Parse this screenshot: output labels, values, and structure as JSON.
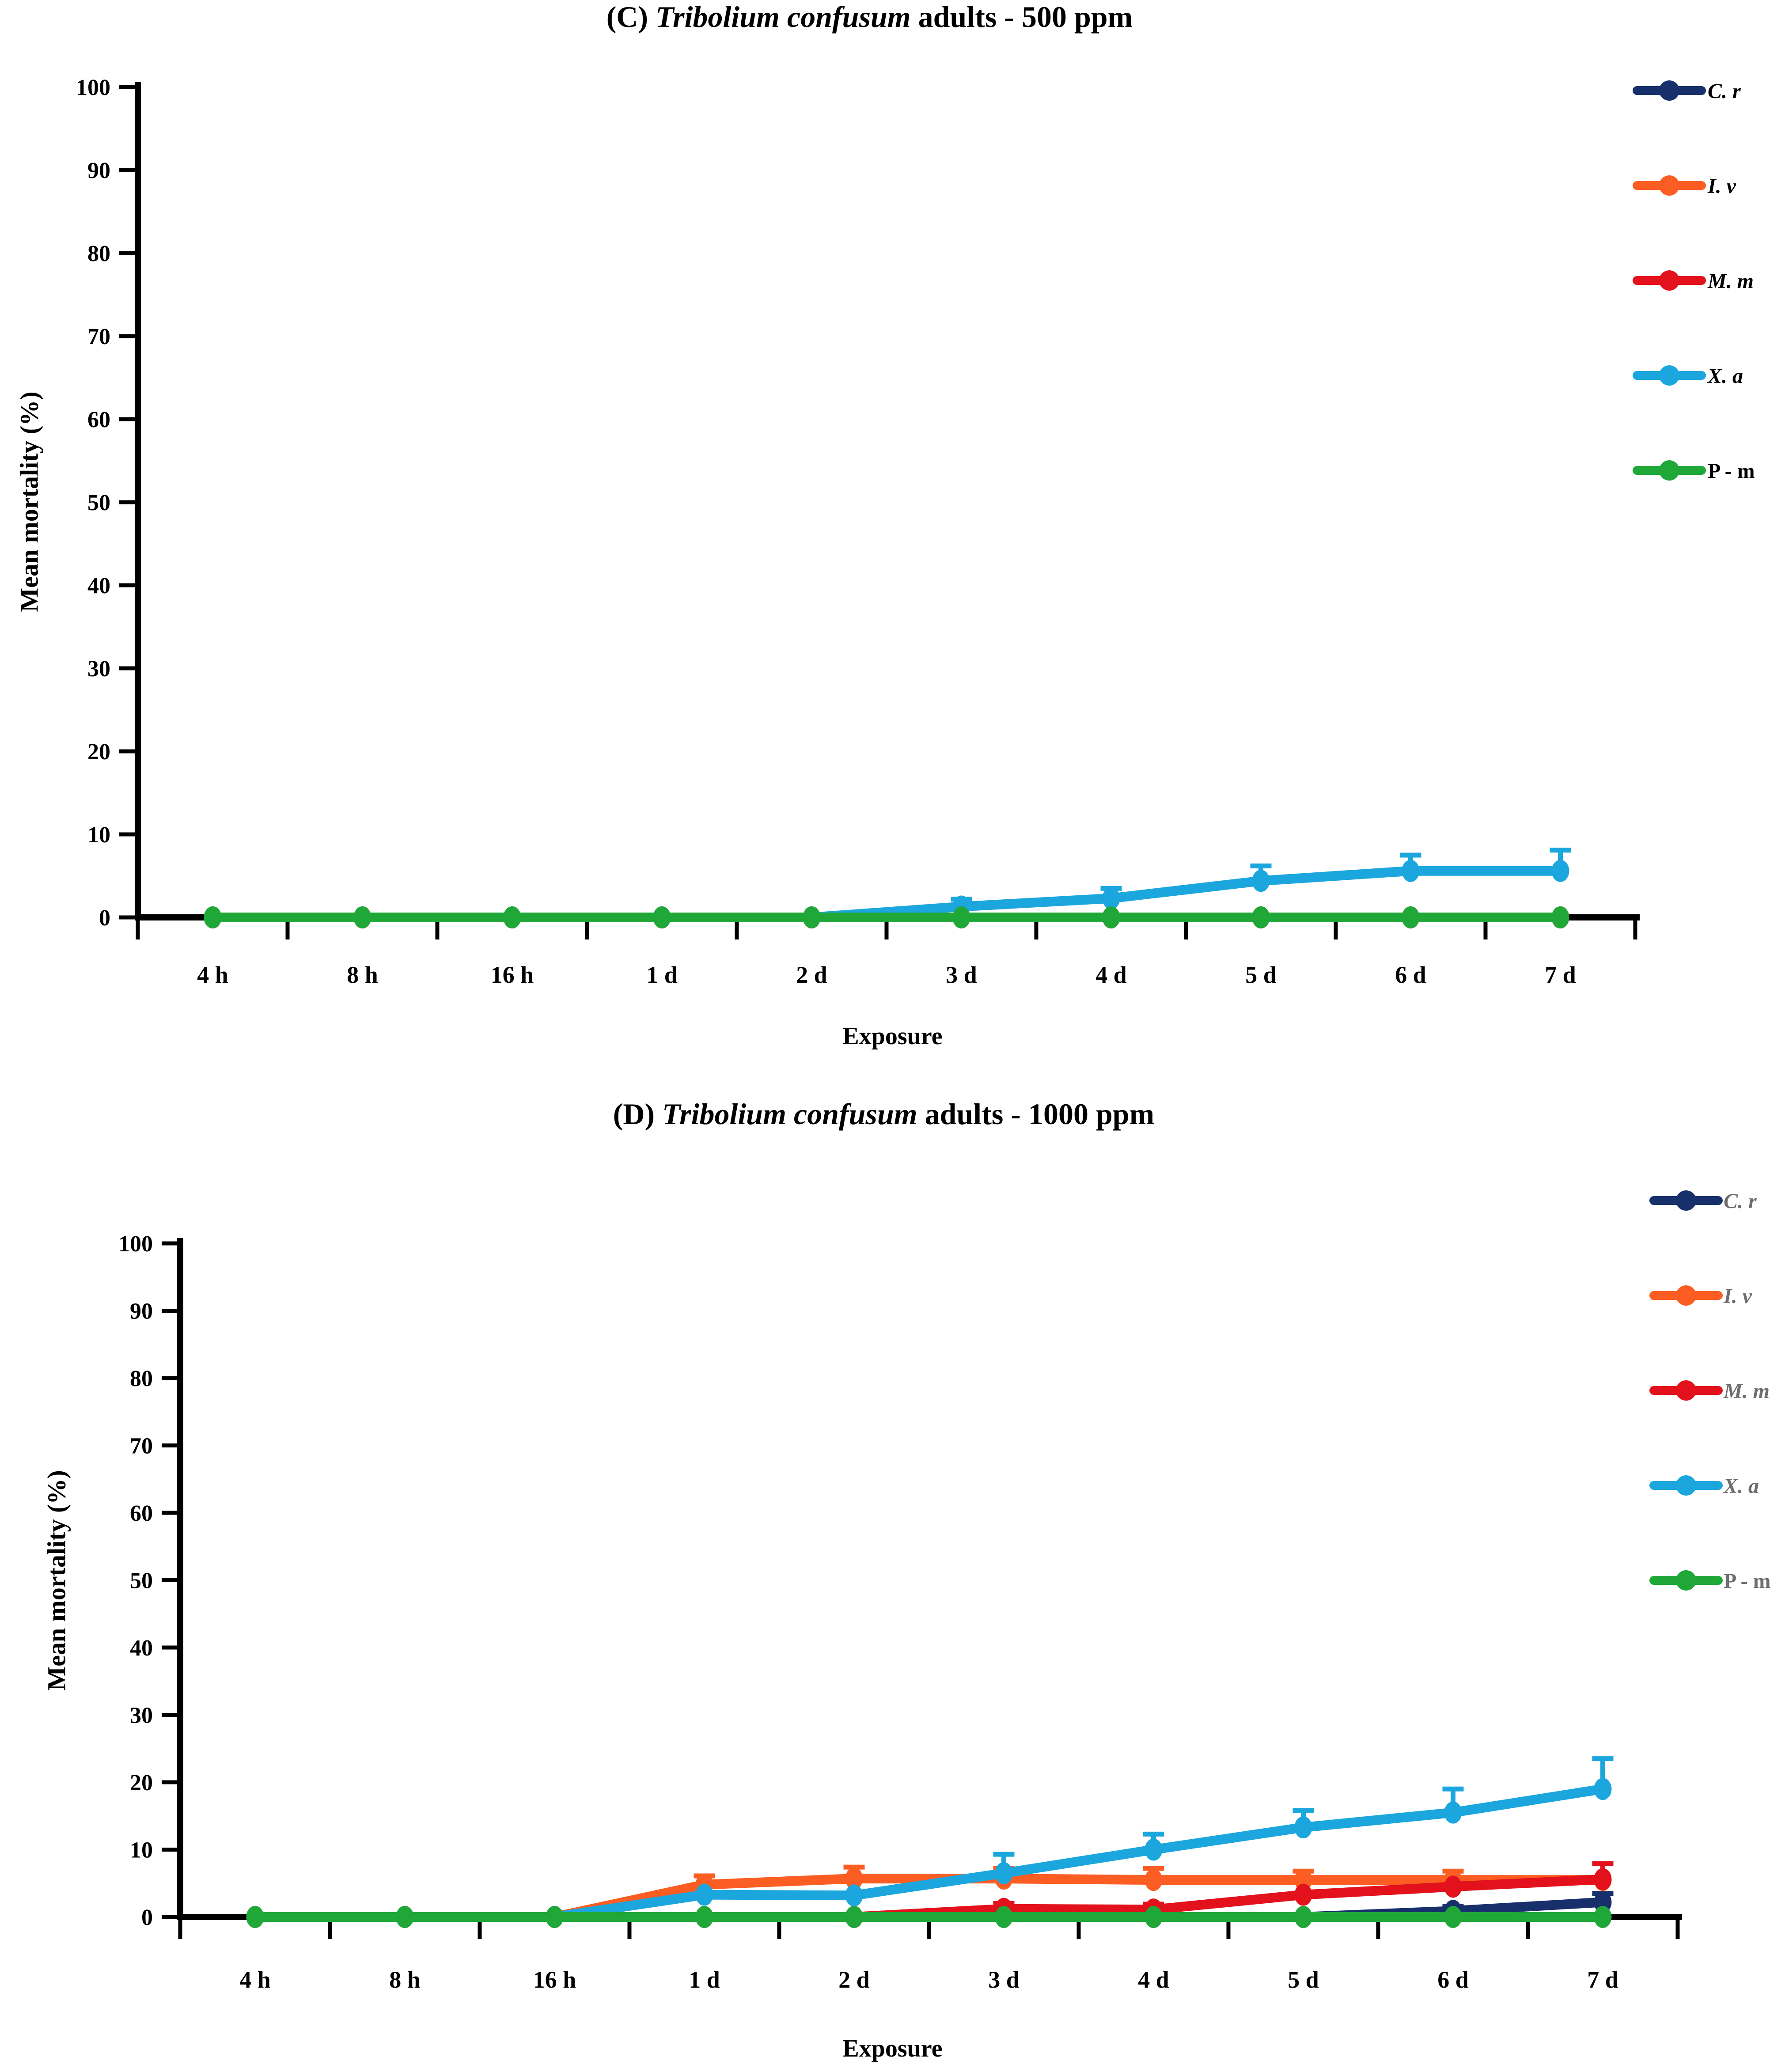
{
  "figure": {
    "background": "#ffffff"
  },
  "chart_data": [
    {
      "type": "line",
      "panel": "C",
      "title": "(C) Tribolium confusum adults - 500 ppm",
      "title_parts": {
        "prefix": "(C) ",
        "italic": "Tribolium confusum",
        "suffix": " adults - 500 ppm"
      },
      "xlabel": "Exposure",
      "ylabel": "Mean mortality (%)",
      "ylim": [
        0,
        100
      ],
      "ytick_step": 10,
      "grid": false,
      "error_bars": "upper-only",
      "legend_position": "outside-upper-right",
      "legend_text_color": "#000000",
      "categories": [
        "4 h",
        "8 h",
        "16 h",
        "1 d",
        "2 d",
        "3 d",
        "4 d",
        "5 d",
        "6 d",
        "7 d"
      ],
      "series": [
        {
          "name": "C. r",
          "color": "#17306B",
          "legend_italic": true,
          "values": [
            0,
            0,
            0,
            0,
            0,
            0,
            0,
            0,
            0,
            0
          ],
          "upper_errors": [
            0,
            0,
            0,
            0,
            0,
            0,
            0,
            0,
            0,
            0
          ]
        },
        {
          "name": "I. v",
          "color": "#FB5D23",
          "legend_italic": true,
          "values": [
            0,
            0,
            0,
            0,
            0,
            0,
            0,
            0,
            0,
            0
          ],
          "upper_errors": [
            0,
            0,
            0,
            0,
            0,
            0,
            0,
            0,
            0,
            0
          ]
        },
        {
          "name": "M. m",
          "color": "#E2111B",
          "legend_italic": true,
          "values": [
            0,
            0,
            0,
            0,
            0,
            0,
            0,
            0,
            0,
            0
          ],
          "upper_errors": [
            0,
            0,
            0,
            0,
            0,
            0,
            0,
            0,
            0,
            0
          ]
        },
        {
          "name": "X. a",
          "color": "#1BA6DE",
          "legend_italic": true,
          "values": [
            0,
            0,
            0,
            0,
            0,
            1.3,
            2.3,
            4.4,
            5.6,
            5.6
          ],
          "upper_errors": [
            0,
            0,
            0,
            0,
            0,
            0.9,
            1.2,
            1.8,
            1.9,
            2.5
          ]
        },
        {
          "name": "P - m",
          "color": "#1FA838",
          "legend_italic": false,
          "values": [
            0,
            0,
            0,
            0,
            0,
            0,
            0,
            0,
            0,
            0
          ],
          "upper_errors": [
            0,
            0,
            0,
            0,
            0,
            0,
            0,
            0,
            0,
            0
          ]
        }
      ]
    },
    {
      "type": "line",
      "panel": "D",
      "title": "(D) Tribolium confusum adults - 1000 ppm",
      "title_parts": {
        "prefix": "(D) ",
        "italic": "Tribolium confusum",
        "suffix": " adults - 1000 ppm"
      },
      "xlabel": "Exposure",
      "ylabel": "Mean mortality (%)",
      "ylim": [
        0,
        100
      ],
      "ytick_step": 10,
      "grid": false,
      "error_bars": "upper-only",
      "legend_position": "outside-upper-right",
      "legend_text_color": "#6e6e6e",
      "categories": [
        "4 h",
        "8 h",
        "16 h",
        "1 d",
        "2 d",
        "3 d",
        "4 d",
        "5 d",
        "6 d",
        "7 d"
      ],
      "series": [
        {
          "name": "C. r",
          "color": "#17306B",
          "legend_italic": true,
          "values": [
            0,
            0,
            0,
            0,
            0,
            0,
            0,
            0,
            0.9,
            2.2
          ],
          "upper_errors": [
            0,
            0,
            0,
            0,
            0,
            0,
            0,
            0,
            0.7,
            1.3
          ]
        },
        {
          "name": "I. v",
          "color": "#FB5D23",
          "legend_italic": true,
          "values": [
            0,
            0,
            0,
            4.8,
            5.7,
            5.7,
            5.5,
            5.5,
            5.5,
            5.5
          ],
          "upper_errors": [
            0,
            0,
            0,
            1.3,
            1.7,
            1.5,
            1.7,
            1.3,
            1.3,
            0
          ]
        },
        {
          "name": "M. m",
          "color": "#E2111B",
          "legend_italic": true,
          "values": [
            0,
            0,
            0,
            0,
            0,
            1.2,
            1.1,
            3.3,
            4.5,
            5.6
          ],
          "upper_errors": [
            0,
            0,
            0,
            0,
            0,
            0.8,
            0.8,
            0,
            0,
            2.3
          ]
        },
        {
          "name": "X. a",
          "color": "#1BA6DE",
          "legend_italic": true,
          "values": [
            0,
            0,
            0,
            3.3,
            3.2,
            6.5,
            10,
            13.3,
            15.5,
            19
          ],
          "upper_errors": [
            0,
            0,
            0,
            0,
            0,
            2.8,
            2.3,
            2.5,
            3.5,
            4.5
          ]
        },
        {
          "name": "P - m",
          "color": "#1FA838",
          "legend_italic": false,
          "values": [
            0,
            0,
            0,
            0,
            0,
            0,
            0,
            0,
            0,
            0
          ],
          "upper_errors": [
            0,
            0,
            0,
            0,
            0,
            0,
            0,
            0,
            0,
            0
          ]
        }
      ]
    }
  ]
}
